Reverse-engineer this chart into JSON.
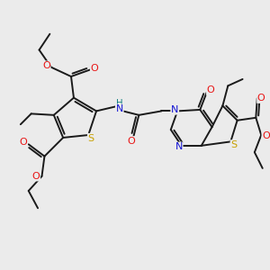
{
  "background_color": "#ebebeb",
  "atom_colors": {
    "C": "#1a1a1a",
    "N": "#1414d4",
    "O": "#e81414",
    "S": "#c8a000",
    "NH": "#148080"
  },
  "bond_color": "#1a1a1a",
  "bond_width": 1.4,
  "figsize": [
    3.0,
    3.0
  ],
  "dpi": 100
}
